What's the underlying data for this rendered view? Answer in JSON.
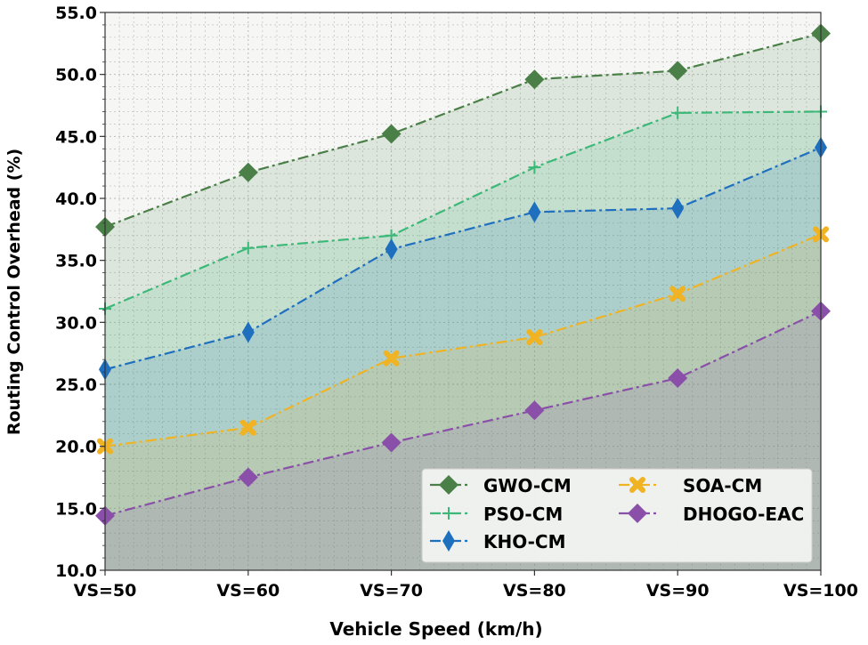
{
  "chart_data": {
    "type": "line",
    "xlabel": "Vehicle Speed (km/h)",
    "ylabel": "Routing Control Overhead (%)",
    "categories": [
      "VS=50",
      "VS=60",
      "VS=70",
      "VS=80",
      "VS=90",
      "VS=100"
    ],
    "ylim": [
      10,
      55
    ],
    "yticks": [
      "10.0",
      "15.0",
      "20.0",
      "25.0",
      "30.0",
      "35.0",
      "40.0",
      "45.0",
      "50.0",
      "55.0"
    ],
    "grid": true,
    "legend_position": "bottom-right",
    "series": [
      {
        "name": "GWO-CM",
        "color": "#4a7f47",
        "marker": "diamond",
        "values": [
          37.7,
          42.1,
          45.2,
          49.6,
          50.3,
          53.3
        ]
      },
      {
        "name": "PSO-CM",
        "color": "#3cb878",
        "marker": "plus",
        "values": [
          31.1,
          36.0,
          37.0,
          42.5,
          46.9,
          47.0
        ]
      },
      {
        "name": "KHO-CM",
        "color": "#1f6fbf",
        "marker": "thin-diamond",
        "values": [
          26.2,
          29.2,
          35.9,
          38.9,
          39.2,
          44.1
        ]
      },
      {
        "name": "SOA-CM",
        "color": "#f0b323",
        "marker": "x",
        "values": [
          20.0,
          21.5,
          27.1,
          28.8,
          32.3,
          37.1
        ]
      },
      {
        "name": "DHOGO-EAC",
        "color": "#8a4fa8",
        "marker": "diamond",
        "values": [
          14.4,
          17.5,
          20.3,
          22.9,
          25.5,
          30.9
        ]
      }
    ]
  }
}
